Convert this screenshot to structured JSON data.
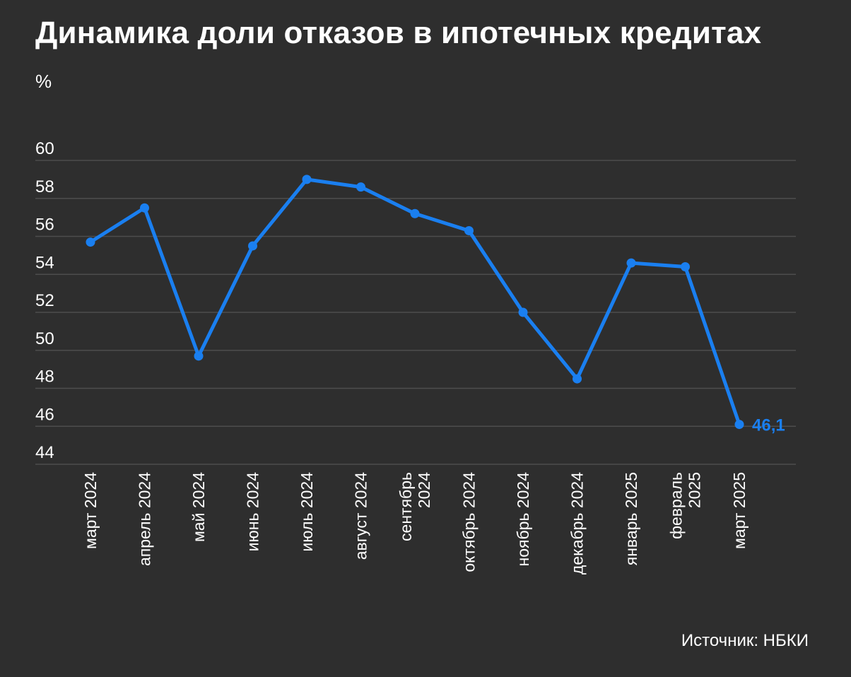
{
  "chart_data": {
    "type": "line",
    "title": "Динамика доли отказов в ипотечных кредитах",
    "unit_label": "%",
    "xlabel": "",
    "ylabel": "",
    "ylim": [
      44,
      60
    ],
    "yticks": [
      44,
      46,
      48,
      50,
      52,
      54,
      56,
      58,
      60
    ],
    "grid": true,
    "categories": [
      [
        "март 2024"
      ],
      [
        "апрель 2024"
      ],
      [
        "май 2024"
      ],
      [
        "июнь 2024"
      ],
      [
        "июль 2024"
      ],
      [
        "август 2024"
      ],
      [
        "сентябрь",
        "2024"
      ],
      [
        "октябрь 2024"
      ],
      [
        "ноябрь 2024"
      ],
      [
        "декабрь 2024"
      ],
      [
        "январь 2025"
      ],
      [
        "февраль",
        "2025"
      ],
      [
        "март 2025"
      ]
    ],
    "series": [
      {
        "values": [
          55.7,
          57.5,
          49.7,
          55.5,
          59.0,
          58.6,
          57.2,
          56.3,
          52.0,
          48.5,
          54.6,
          54.4,
          46.1
        ]
      }
    ],
    "annotations": [
      {
        "index": 12,
        "text": "46,1"
      }
    ],
    "colors": {
      "line": "#1a7ff0",
      "grid": "#4d4d4d",
      "text": "#ffffff",
      "background": "#2e2e2e"
    }
  },
  "footer": {
    "source": "Источник: НБКИ"
  }
}
